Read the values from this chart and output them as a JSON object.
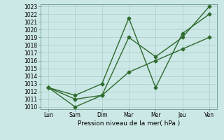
{
  "title": "",
  "xlabel": "Pression niveau de la mer( hPa )",
  "x_labels": [
    "Lun",
    "Sam",
    "Dim",
    "Mar",
    "Mer",
    "Jeu",
    "Ven"
  ],
  "x_positions": [
    0,
    1,
    2,
    3,
    4,
    5,
    6
  ],
  "line1": [
    1012.5,
    1010.0,
    1011.5,
    1019.0,
    1016.5,
    1019.0,
    1023.0
  ],
  "line2": [
    1012.5,
    1011.5,
    1013.0,
    1021.5,
    1012.5,
    1019.5,
    1022.0
  ],
  "line3": [
    1012.5,
    1011.0,
    1011.5,
    1014.5,
    1016.0,
    1017.5,
    1019.0
  ],
  "line_color": "#2d6a2d",
  "marker": "D",
  "marker_size": 2.5,
  "ylim_min": 1010,
  "ylim_max": 1023,
  "yticks": [
    1010,
    1011,
    1012,
    1013,
    1014,
    1015,
    1016,
    1017,
    1018,
    1019,
    1020,
    1021,
    1022,
    1023
  ],
  "bg_color": "#cce8e6",
  "grid_color": "#aaccca",
  "line_width": 1.0,
  "tick_fontsize": 5.5,
  "xlabel_fontsize": 6.5
}
